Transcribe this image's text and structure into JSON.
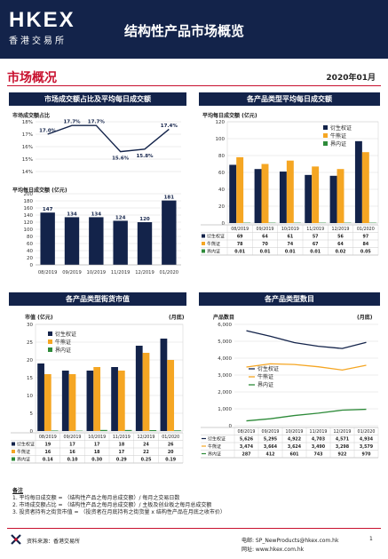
{
  "header": {
    "logo_main": "HKEX",
    "logo_sub": "香港交易所",
    "title": "结构性产品市场概览"
  },
  "section": {
    "title": "市场概况",
    "date": "2020年01月"
  },
  "panels": {
    "p1": "市场成交额占比及平均每日成交额",
    "p2": "各产品类型平均每日成交额",
    "p3": "各产品类型街货市值",
    "p4": "各产品类型数目"
  },
  "labels": {
    "ratio": "市场成交额占比",
    "avg": "平均每日成交额 (亿元)",
    "avg_by_type": "平均每日成交额 (亿元)",
    "mktval": "市值 (亿元)",
    "count": "产品数目",
    "monthly": "(月底)"
  },
  "categories": [
    "08/2019",
    "09/2019",
    "10/2019",
    "11/2019",
    "12/2019",
    "01/2020"
  ],
  "series_names": [
    "衍生权证",
    "牛熊证",
    "界内证"
  ],
  "colors": {
    "dw": "#13234a",
    "cbbc": "#f5a623",
    "inline": "#2e8b3a",
    "accent": "#c8102e"
  },
  "chart_data": [
    {
      "type": "line",
      "title": "市场成交额占比",
      "categories": [
        "08/2019",
        "09/2019",
        "10/2019",
        "11/2019",
        "12/2019",
        "01/2020"
      ],
      "values": [
        17.0,
        17.7,
        17.7,
        15.6,
        15.8,
        17.4
      ],
      "value_labels": [
        "17.0%",
        "17.7%",
        "17.7%",
        "15.6%",
        "15.8%",
        "17.4%"
      ],
      "yticks": [
        "14%",
        "15%",
        "16%",
        "17%",
        "18%"
      ],
      "ylim": [
        14,
        18
      ]
    },
    {
      "type": "bar",
      "title": "平均每日成交额 (亿元)",
      "categories": [
        "08/2019",
        "09/2019",
        "10/2019",
        "11/2019",
        "12/2019",
        "01/2020"
      ],
      "values": [
        147,
        134,
        134,
        124,
        120,
        181
      ],
      "yticks": [
        "0",
        "20",
        "40",
        "60",
        "80",
        "100",
        "120",
        "140",
        "160",
        "180",
        "200"
      ],
      "ylim": [
        0,
        200
      ]
    },
    {
      "type": "bar",
      "title": "平均每日成交额 (亿元)",
      "categories": [
        "08/2019",
        "09/2019",
        "10/2019",
        "11/2019",
        "12/2019",
        "01/2020"
      ],
      "series": [
        {
          "name": "衍生权证",
          "values": [
            69,
            64,
            61,
            57,
            56,
            97
          ],
          "labels": [
            "69",
            "64",
            "61",
            "57",
            "56",
            "97"
          ]
        },
        {
          "name": "牛熊证",
          "values": [
            78,
            70,
            74,
            67,
            64,
            84
          ],
          "labels": [
            "78",
            "70",
            "74",
            "67",
            "64",
            "84"
          ]
        },
        {
          "name": "界内证",
          "values": [
            0.01,
            0.01,
            0.01,
            0.01,
            0.02,
            0.05
          ],
          "labels": [
            "0.01",
            "0.01",
            "0.01",
            "0.01",
            "0.02",
            "0.05"
          ]
        }
      ],
      "yticks": [
        "0",
        "20",
        "40",
        "60",
        "80",
        "100",
        "120"
      ],
      "ylim": [
        0,
        120
      ]
    },
    {
      "type": "bar",
      "title": "市值 (亿元)",
      "categories": [
        "08/2019",
        "09/2019",
        "10/2019",
        "11/2019",
        "12/2019",
        "01/2020"
      ],
      "series": [
        {
          "name": "衍生权证",
          "values": [
            19,
            17,
            17,
            18,
            24,
            26
          ],
          "labels": [
            "19",
            "17",
            "17",
            "18",
            "24",
            "26"
          ]
        },
        {
          "name": "牛熊证",
          "values": [
            16,
            16,
            18,
            17,
            22,
            20
          ],
          "labels": [
            "16",
            "16",
            "18",
            "17",
            "22",
            "20"
          ]
        },
        {
          "name": "界内证",
          "values": [
            0.14,
            0.1,
            0.3,
            0.29,
            0.25,
            0.19
          ],
          "labels": [
            "0.14",
            "0.10",
            "0.30",
            "0.29",
            "0.25",
            "0.19"
          ]
        }
      ],
      "yticks": [
        "0",
        "5",
        "10",
        "15",
        "20",
        "25",
        "30"
      ],
      "ylim": [
        0,
        30
      ]
    },
    {
      "type": "line",
      "title": "产品数目",
      "categories": [
        "08/2019",
        "09/2019",
        "10/2019",
        "11/2019",
        "12/2019",
        "01/2020"
      ],
      "series": [
        {
          "name": "衍生权证",
          "values": [
            5626,
            5295,
            4922,
            4703,
            4571,
            4934
          ],
          "labels": [
            "5,626",
            "5,295",
            "4,922",
            "4,703",
            "4,571",
            "4,934"
          ]
        },
        {
          "name": "牛熊证",
          "values": [
            3474,
            3664,
            3624,
            3490,
            3298,
            3579
          ],
          "labels": [
            "3,474",
            "3,664",
            "3,624",
            "3,490",
            "3,298",
            "3,579"
          ]
        },
        {
          "name": "界内证",
          "values": [
            287,
            412,
            601,
            743,
            922,
            970
          ],
          "labels": [
            "287",
            "412",
            "601",
            "743",
            "922",
            "970"
          ]
        }
      ],
      "yticks": [
        "0",
        "1,000",
        "2,000",
        "3,000",
        "4,000",
        "5,000",
        "6,000"
      ],
      "ylim": [
        0,
        6000
      ]
    }
  ],
  "notes": {
    "title": "备注",
    "items": [
      "1. 平均每日成交额 = （结构性产品之每月总成交额）/ 每月之交易日数",
      "2. 市场成交额占比 = （结构性产品之每月总成交额）/ 主板及创业板之每月总成交额",
      "3. 投资者持有之街货市值 = （投资者在月底持有之街货量 x 结构性产品在月底之收市价）"
    ]
  },
  "footer": {
    "source": "资料来源：香港交易所",
    "email": "电邮: SP_NewProducts@hkex.com.hk",
    "website": "网址: www.hkex.com.hk",
    "page": "1"
  }
}
